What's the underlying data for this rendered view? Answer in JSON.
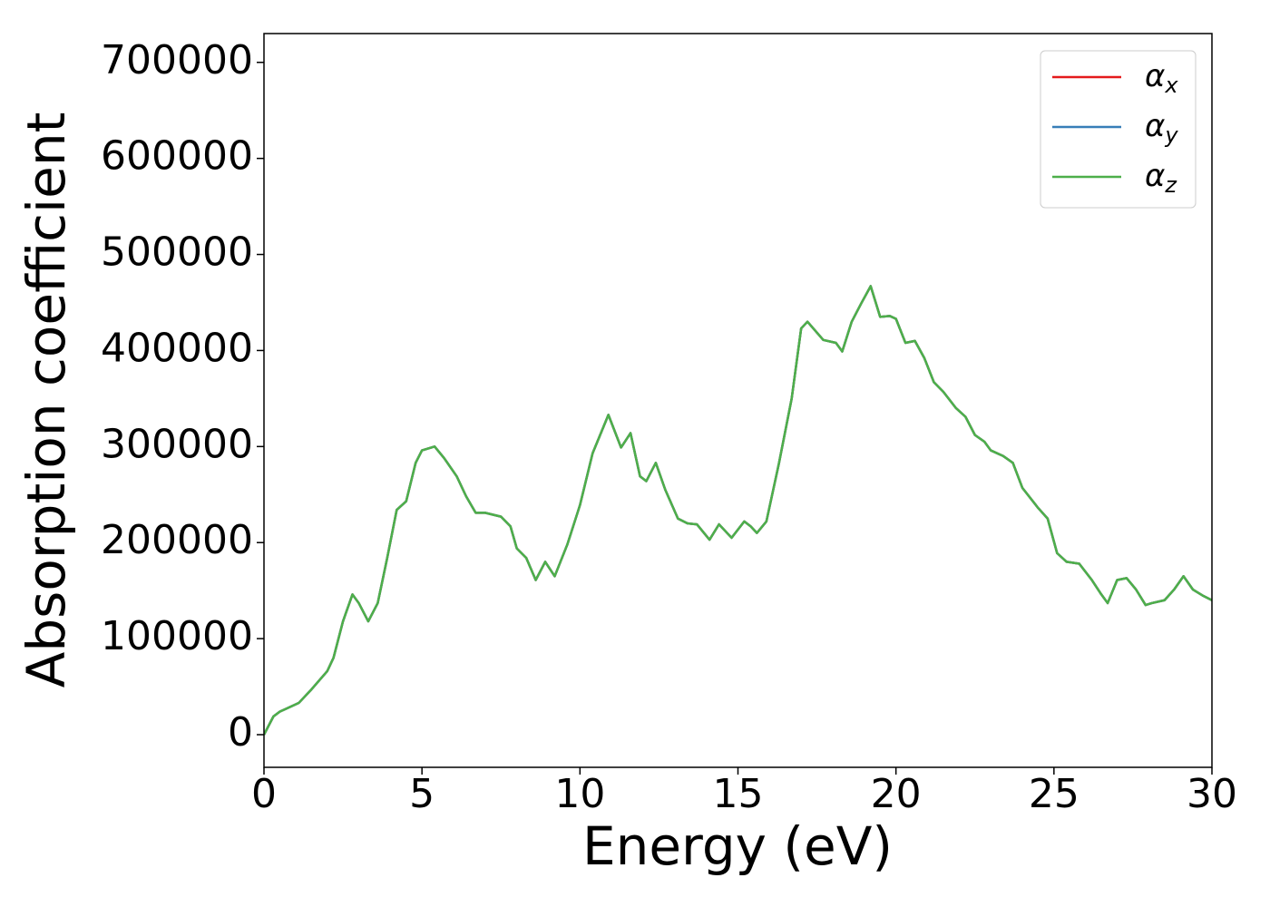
{
  "chart_data": {
    "type": "line",
    "xlabel": "Energy (eV)",
    "ylabel": "Absorption coefficient",
    "x": [
      0,
      0.3,
      0.5,
      0.9,
      1.1,
      1.5,
      2.0,
      2.2,
      2.5,
      2.8,
      3.0,
      3.3,
      3.6,
      3.9,
      4.2,
      4.5,
      4.8,
      5.0,
      5.4,
      5.7,
      6.1,
      6.4,
      6.7,
      7.0,
      7.5,
      7.8,
      8.0,
      8.3,
      8.6,
      8.9,
      9.2,
      9.6,
      10.0,
      10.4,
      10.9,
      11.3,
      11.6,
      11.9,
      12.1,
      12.4,
      12.7,
      13.1,
      13.4,
      13.7,
      14.1,
      14.4,
      14.8,
      15.2,
      15.4,
      15.6,
      15.9,
      16.3,
      16.7,
      17.0,
      17.2,
      17.7,
      18.1,
      18.3,
      18.6,
      18.9,
      19.2,
      19.5,
      19.8,
      20.0,
      20.3,
      20.6,
      20.9,
      21.2,
      21.5,
      21.9,
      22.2,
      22.5,
      22.8,
      23.0,
      23.4,
      23.7,
      24.0,
      24.5,
      24.8,
      25.1,
      25.4,
      25.8,
      26.2,
      26.5,
      26.7,
      27.0,
      27.3,
      27.6,
      27.9,
      28.1,
      28.5,
      28.8,
      29.1,
      29.4,
      29.7,
      30.0
    ],
    "series": [
      {
        "name": "αx",
        "color": "#e41a1c",
        "values": [
          0,
          19000,
          24000,
          30000,
          33000,
          47000,
          66000,
          80000,
          118000,
          146000,
          137000,
          118000,
          137000,
          184000,
          234000,
          243000,
          283000,
          296000,
          300000,
          288000,
          269000,
          248000,
          231000,
          231000,
          227000,
          217000,
          194000,
          184000,
          161000,
          180000,
          165000,
          198000,
          239000,
          293000,
          333000,
          299000,
          314000,
          269000,
          264000,
          283000,
          255000,
          225000,
          220000,
          219000,
          203000,
          219000,
          205000,
          222000,
          217000,
          210000,
          222000,
          283000,
          350000,
          423000,
          430000,
          411000,
          408000,
          399000,
          430000,
          449000,
          467000,
          435000,
          436000,
          433000,
          408000,
          410000,
          392000,
          367000,
          357000,
          340000,
          331000,
          312000,
          305000,
          296000,
          290000,
          283000,
          257000,
          236000,
          225000,
          189000,
          180000,
          178000,
          161000,
          146000,
          137000,
          161000,
          163000,
          151000,
          135000,
          137000,
          140000,
          151000,
          165000,
          151000,
          145000,
          140000
        ]
      },
      {
        "name": "αy",
        "color": "#377eb8",
        "values": [
          0,
          19000,
          24000,
          30000,
          33000,
          47000,
          66000,
          80000,
          118000,
          146000,
          137000,
          118000,
          137000,
          184000,
          234000,
          243000,
          283000,
          296000,
          300000,
          288000,
          269000,
          248000,
          231000,
          231000,
          227000,
          217000,
          194000,
          184000,
          161000,
          180000,
          165000,
          198000,
          239000,
          293000,
          333000,
          299000,
          314000,
          269000,
          264000,
          283000,
          255000,
          225000,
          220000,
          219000,
          203000,
          219000,
          205000,
          222000,
          217000,
          210000,
          222000,
          283000,
          350000,
          423000,
          430000,
          411000,
          408000,
          399000,
          430000,
          449000,
          467000,
          435000,
          436000,
          433000,
          408000,
          410000,
          392000,
          367000,
          357000,
          340000,
          331000,
          312000,
          305000,
          296000,
          290000,
          283000,
          257000,
          236000,
          225000,
          189000,
          180000,
          178000,
          161000,
          146000,
          137000,
          161000,
          163000,
          151000,
          135000,
          137000,
          140000,
          151000,
          165000,
          151000,
          145000,
          140000
        ]
      },
      {
        "name": "αz",
        "color": "#4daf4a",
        "values": [
          0,
          19000,
          24000,
          30000,
          33000,
          47000,
          66000,
          80000,
          118000,
          146000,
          137000,
          118000,
          137000,
          184000,
          234000,
          243000,
          283000,
          296000,
          300000,
          288000,
          269000,
          248000,
          231000,
          231000,
          227000,
          217000,
          194000,
          184000,
          161000,
          180000,
          165000,
          198000,
          239000,
          293000,
          333000,
          299000,
          314000,
          269000,
          264000,
          283000,
          255000,
          225000,
          220000,
          219000,
          203000,
          219000,
          205000,
          222000,
          217000,
          210000,
          222000,
          283000,
          350000,
          423000,
          430000,
          411000,
          408000,
          399000,
          430000,
          449000,
          467000,
          435000,
          436000,
          433000,
          408000,
          410000,
          392000,
          367000,
          357000,
          340000,
          331000,
          312000,
          305000,
          296000,
          290000,
          283000,
          257000,
          236000,
          225000,
          189000,
          180000,
          178000,
          161000,
          146000,
          137000,
          161000,
          163000,
          151000,
          135000,
          137000,
          140000,
          151000,
          165000,
          151000,
          145000,
          140000
        ]
      }
    ],
    "xlim": [
      0,
      30
    ],
    "xticks": [
      0,
      5,
      10,
      15,
      20,
      25,
      30
    ],
    "ylim": [
      -34000,
      730000
    ],
    "yticks": [
      0,
      100000,
      200000,
      300000,
      400000,
      500000,
      600000,
      700000
    ],
    "grid": false,
    "legend": "upper right"
  }
}
